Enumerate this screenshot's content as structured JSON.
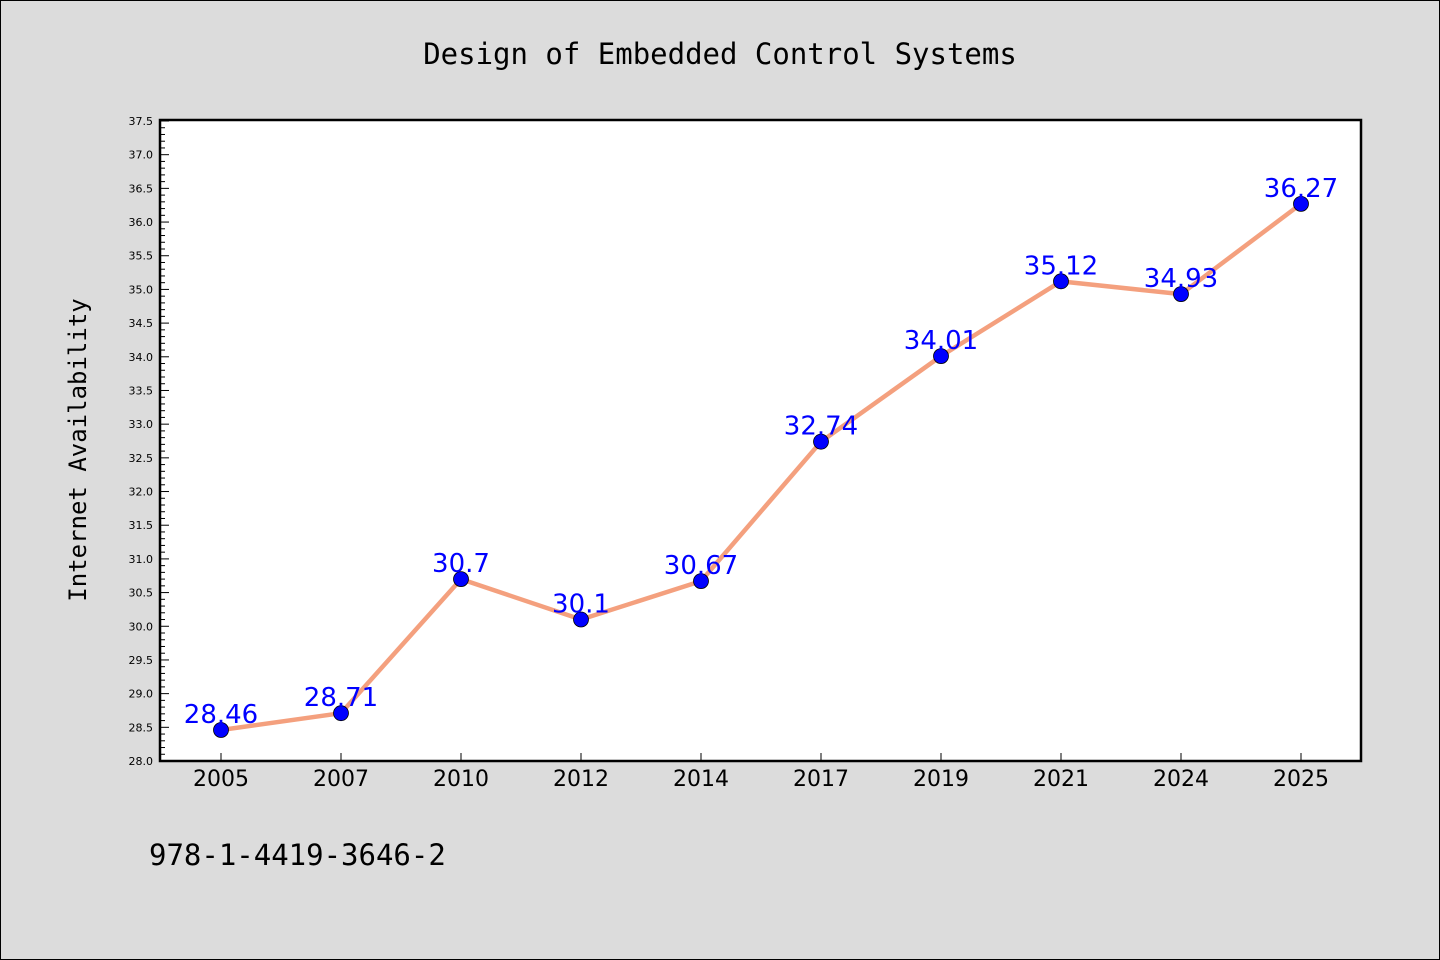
{
  "chart_data": {
    "type": "line",
    "title": "Design of Embedded Control Systems",
    "xlabel": "",
    "ylabel": "Internet Availability",
    "categories": [
      "2005",
      "2007",
      "2010",
      "2012",
      "2014",
      "2017",
      "2019",
      "2021",
      "2024",
      "2025"
    ],
    "series": [
      {
        "values": [
          28.46,
          28.71,
          30.7,
          30.1,
          30.67,
          32.74,
          34.01,
          35.12,
          34.93,
          36.27
        ],
        "labels": [
          "28.46",
          "28.71",
          "30.7",
          "30.1",
          "30.67",
          "32.74",
          "34.01",
          "35.12",
          "34.93",
          "36.27"
        ],
        "line_color": "#f4a07e",
        "marker_color": "#0000ff",
        "label_color": "#0000ff"
      }
    ],
    "ylim": [
      28.0,
      37.5
    ],
    "ytick_step": 0.5,
    "grid": false,
    "legend": "none"
  },
  "annotation_text": "978-1-4419-3646-2",
  "colors": {
    "background": "#dcdcdc",
    "plot_background": "#ffffff",
    "axis": "#000000",
    "text": "#000000"
  }
}
